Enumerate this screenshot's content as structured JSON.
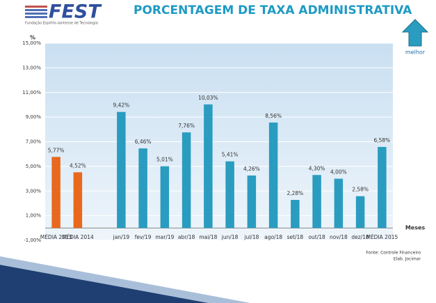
{
  "header": {
    "logo": "FEST",
    "logo_subtitle": "Fundação Espírito-santense de Tecnologia",
    "title": "PORCENTAGEM DE TAXA ADMINISTRATIVA"
  },
  "indicator": "melhor",
  "source": [
    "Fonte: Controle Financeiro",
    "Elab. Jocimar"
  ],
  "chart_data": {
    "type": "bar",
    "y_axis_label": "%",
    "x_axis_label": "Meses",
    "categories": [
      "MÉDIA 2013",
      "MÉDIA 2014",
      null,
      "jan/19",
      "fev/19",
      "mar/19",
      "abr/18",
      "mai/18",
      "jun/18",
      "jul/18",
      "ago/18",
      "set/18",
      "out/18",
      "nov/18",
      "dez/18",
      "MÉDIA 2015"
    ],
    "values": [
      5.77,
      4.52,
      null,
      9.42,
      6.46,
      5.01,
      7.76,
      10.03,
      5.41,
      4.26,
      8.56,
      2.28,
      4.3,
      4.0,
      2.58,
      6.58
    ],
    "value_labels": [
      "5,77%",
      "4,52%",
      null,
      "9,42%",
      "6,46%",
      "5,01%",
      "7,76%",
      "10,03%",
      "5,41%",
      "4,26%",
      "8,56%",
      "2,28%",
      "4,30%",
      "4,00%",
      "2,58%",
      "6,58%"
    ],
    "colors": [
      "#e8681e",
      "#e8681e",
      null,
      "#2a9cc0",
      "#2a9cc0",
      "#2a9cc0",
      "#2a9cc0",
      "#2a9cc0",
      "#2a9cc0",
      "#2a9cc0",
      "#2a9cc0",
      "#2a9cc0",
      "#2a9cc0",
      "#2a9cc0",
      "#2a9cc0",
      "#2a9cc0"
    ],
    "ylim": [
      -1,
      15
    ],
    "yticks": [
      {
        "value": -1,
        "label": "-1,00%"
      },
      {
        "value": 1,
        "label": "1,00%"
      },
      {
        "value": 3,
        "label": "3,00%"
      },
      {
        "value": 5,
        "label": "5,00%"
      },
      {
        "value": 7,
        "label": "7,00%"
      },
      {
        "value": 9,
        "label": "9,00%"
      },
      {
        "value": 11,
        "label": "11,00%"
      },
      {
        "value": 13,
        "label": "13,00%"
      },
      {
        "value": 15,
        "label": "15,00%"
      }
    ],
    "grid": true
  }
}
